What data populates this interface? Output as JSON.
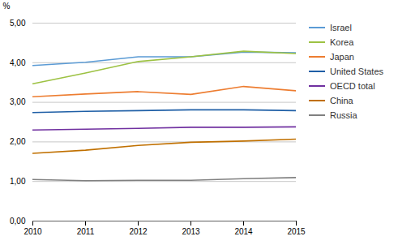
{
  "chart_data": {
    "type": "line",
    "ylabel": "%",
    "x": [
      2010,
      2011,
      2012,
      2013,
      2014,
      2015
    ],
    "series": [
      {
        "name": "Israel",
        "color": "#5B9BD5",
        "values": [
          3.93,
          4.01,
          4.15,
          4.15,
          4.27,
          4.25
        ]
      },
      {
        "name": "Korea",
        "color": "#9DC243",
        "values": [
          3.47,
          3.74,
          4.03,
          4.15,
          4.29,
          4.23
        ]
      },
      {
        "name": "Japan",
        "color": "#ED7D31",
        "values": [
          3.14,
          3.21,
          3.27,
          3.2,
          3.4,
          3.29
        ]
      },
      {
        "name": "United States",
        "color": "#1F5FA6",
        "values": [
          2.74,
          2.77,
          2.79,
          2.81,
          2.81,
          2.79
        ]
      },
      {
        "name": "OECD total",
        "color": "#7030A0",
        "values": [
          2.3,
          2.32,
          2.34,
          2.37,
          2.37,
          2.38
        ]
      },
      {
        "name": "China",
        "color": "#C07000",
        "values": [
          1.71,
          1.79,
          1.91,
          1.99,
          2.02,
          2.07
        ]
      },
      {
        "name": "Russia",
        "color": "#808080",
        "values": [
          1.05,
          1.02,
          1.03,
          1.03,
          1.07,
          1.1
        ]
      }
    ],
    "xlim": [
      2010,
      2015
    ],
    "xticks": [
      2010,
      2011,
      2012,
      2013,
      2014,
      2015
    ],
    "ylim": [
      0,
      5.0
    ],
    "yticks": [
      {
        "value": 0.0,
        "label": "0,00"
      },
      {
        "value": 1.0,
        "label": "1,00"
      },
      {
        "value": 2.0,
        "label": "2,00"
      },
      {
        "value": 3.0,
        "label": "3,00"
      },
      {
        "value": 4.0,
        "label": "4,00"
      },
      {
        "value": 5.0,
        "label": "5,00"
      }
    ],
    "grid": true,
    "legend": "right"
  }
}
